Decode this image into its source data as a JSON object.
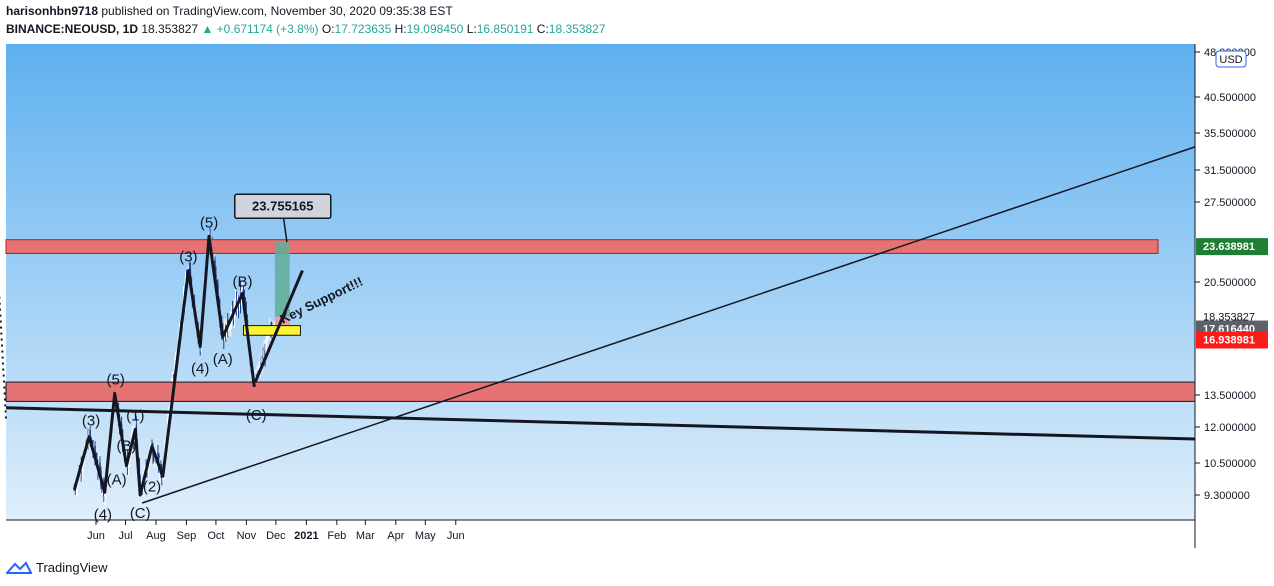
{
  "header": {
    "author": "harisonhbn9718",
    "published_text": "published on TradingView.com, November 30, 2020 09:35:38 EST",
    "symbol": "BINANCE:NEOUSD, 1D",
    "last": "18.353827",
    "change": "+0.671174 (+3.8%)",
    "o_label": "O:",
    "o_value": "17.723635",
    "h_label": "H:",
    "h_value": "19.098450",
    "l_label": "L:",
    "l_value": "16.850191",
    "c_label": "C:",
    "c_value": "18.353827"
  },
  "footer": {
    "brand": "TradingView"
  },
  "colors": {
    "bg_top": "#5eb0f0",
    "bg_bottom": "#dfeefa",
    "zone_red": "#e57373",
    "zone_yellow": "#fbf230",
    "target_green": "#5fae96",
    "stop_red": "#ee9aa0",
    "price_green_tag": "#1e7e34",
    "price_red_tag": "#ff1a1a",
    "price_grey_tag": "#5d606b",
    "candle_up": "#ffffff",
    "candle_down": "#1e3a8a"
  },
  "chart_data": {
    "type": "candlestick",
    "currency_label": "USD",
    "x_ticks": [
      "Jun",
      "Jul",
      "Aug",
      "Sep",
      "Oct",
      "Nov",
      "Dec",
      "2021",
      "Feb",
      "Mar",
      "Apr",
      "May",
      "Jun"
    ],
    "y_ticks": [
      "48.000000",
      "40.500000",
      "35.500000",
      "31.500000",
      "27.500000",
      "20.500000",
      "13.500000",
      "12.000000",
      "10.500000",
      "9.300000"
    ],
    "price_tags": [
      {
        "value": "23.638981",
        "style": "green"
      },
      {
        "value": "18.353827",
        "style": "plain"
      },
      {
        "value": "09:24:26",
        "style": "plain"
      },
      {
        "value": "17.616440",
        "style": "grey"
      },
      {
        "value": "16.938981",
        "style": "red"
      }
    ],
    "target_callout": "23.755165",
    "annotation": "Key Support!!!",
    "wave_labels": [
      "(3)",
      "(4)",
      "(5)",
      "(A)",
      "(B)",
      "(C)",
      "(1)",
      "(2)",
      "(3)",
      "(4)",
      "(5)",
      "(A)",
      "(B)",
      "(C)"
    ],
    "zones": [
      {
        "name": "resistance",
        "low": 23.0,
        "high": 24.2,
        "color": "red"
      },
      {
        "name": "support",
        "low": 13.2,
        "high": 14.3,
        "color": "red"
      },
      {
        "name": "support-retest",
        "low": 17.2,
        "high": 17.8,
        "color": "yellow"
      }
    ],
    "wave_path": [
      [
        "May 10",
        9.5
      ],
      [
        "May 25",
        11.6
      ],
      [
        "Jun 10",
        9.4
      ],
      [
        "Jun 20",
        13.6
      ],
      [
        "Jul 2",
        10.4
      ],
      [
        "Jul 11",
        11.9
      ],
      [
        "Jul 16",
        9.3
      ],
      [
        "Jul 28",
        11.2
      ],
      [
        "Aug 8",
        10.0
      ],
      [
        "Sep 3",
        21.5
      ],
      [
        "Sep 15",
        16.5
      ],
      [
        "Sep 24",
        24.5
      ],
      [
        "Oct 8",
        17.1
      ],
      [
        "Oct 28",
        19.8
      ],
      [
        "Nov 9",
        14.0
      ]
    ],
    "last_price": 18.353827,
    "open": 17.723635,
    "high": 19.09845,
    "low": 16.850191,
    "close": 18.353827
  }
}
